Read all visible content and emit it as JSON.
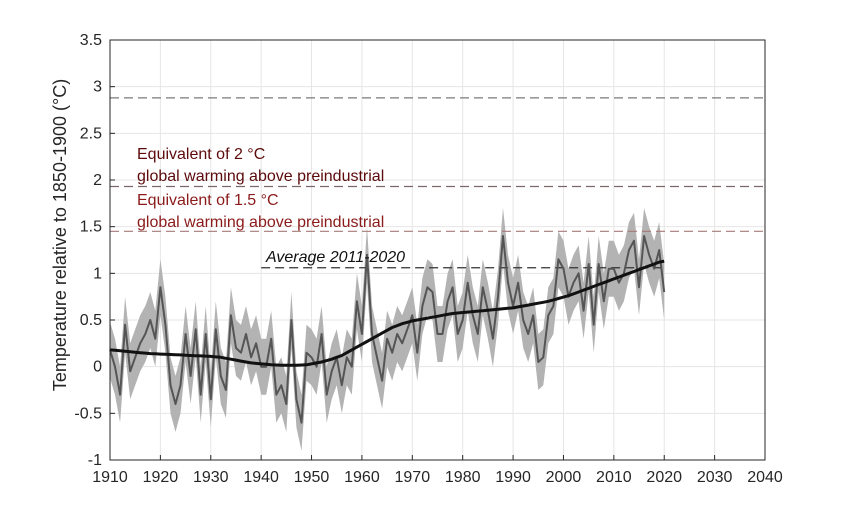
{
  "chart_data": {
    "type": "line",
    "ylabel": "Temperature relative to 1850-1900 (°C)",
    "xlabel": "",
    "xlim": [
      1910,
      2040
    ],
    "ylim": [
      -1,
      3.5
    ],
    "xticks": [
      "1910",
      "1920",
      "1930",
      "1940",
      "1950",
      "1960",
      "1970",
      "1980",
      "1990",
      "2000",
      "2010",
      "2020",
      "2030",
      "2040"
    ],
    "yticks": [
      "-1",
      "-0.5",
      "0",
      "0.5",
      "1",
      "1.5",
      "2",
      "2.5",
      "3",
      "3.5"
    ],
    "grid": true,
    "years": [
      1910,
      1911,
      1912,
      1913,
      1914,
      1915,
      1916,
      1917,
      1918,
      1919,
      1920,
      1921,
      1922,
      1923,
      1924,
      1925,
      1926,
      1927,
      1928,
      1929,
      1930,
      1931,
      1932,
      1933,
      1934,
      1935,
      1936,
      1937,
      1938,
      1939,
      1940,
      1941,
      1942,
      1943,
      1944,
      1945,
      1946,
      1947,
      1948,
      1949,
      1950,
      1951,
      1952,
      1953,
      1954,
      1955,
      1956,
      1957,
      1958,
      1959,
      1960,
      1961,
      1962,
      1963,
      1964,
      1965,
      1966,
      1967,
      1968,
      1969,
      1970,
      1971,
      1972,
      1973,
      1974,
      1975,
      1976,
      1977,
      1978,
      1979,
      1980,
      1981,
      1982,
      1983,
      1984,
      1985,
      1986,
      1987,
      1988,
      1989,
      1990,
      1991,
      1992,
      1993,
      1994,
      1995,
      1996,
      1997,
      1998,
      1999,
      2000,
      2001,
      2002,
      2003,
      2004,
      2005,
      2006,
      2007,
      2008,
      2009,
      2010,
      2011,
      2012,
      2013,
      2014,
      2015,
      2016,
      2017,
      2018,
      2019,
      2020
    ],
    "series": [
      {
        "kind": "annual",
        "color": "#555555",
        "values": [
          0.18,
          0.0,
          -0.3,
          0.45,
          -0.05,
          0.1,
          0.25,
          0.35,
          0.5,
          0.3,
          0.85,
          0.45,
          -0.2,
          -0.4,
          -0.2,
          0.35,
          -0.1,
          0.4,
          -0.3,
          0.35,
          -0.35,
          0.4,
          -0.1,
          -0.25,
          0.55,
          0.2,
          0.15,
          0.35,
          0.1,
          0.25,
          0.0,
          0.0,
          0.3,
          -0.3,
          -0.2,
          -0.4,
          0.5,
          -0.35,
          -0.6,
          0.15,
          0.1,
          0.0,
          0.35,
          -0.3,
          -0.05,
          0.1,
          -0.2,
          0.1,
          0.0,
          0.7,
          0.35,
          1.2,
          0.35,
          0.1,
          -0.15,
          0.3,
          0.15,
          0.35,
          0.25,
          0.4,
          0.55,
          0.15,
          0.65,
          0.85,
          0.8,
          0.35,
          0.35,
          0.7,
          0.85,
          0.35,
          0.5,
          0.9,
          0.55,
          0.35,
          0.85,
          0.6,
          0.3,
          0.75,
          1.4,
          0.9,
          0.65,
          0.9,
          0.5,
          0.35,
          0.55,
          0.05,
          0.1,
          0.55,
          0.65,
          1.15,
          1.05,
          0.75,
          0.9,
          1.0,
          0.6,
          1.1,
          0.45,
          1.1,
          0.7,
          1.05,
          1.05,
          0.9,
          1.0,
          1.25,
          1.35,
          0.85,
          1.4,
          1.2,
          1.05,
          1.25,
          0.8
        ],
        "band": 0.3
      },
      {
        "kind": "trend",
        "color": "#111111",
        "values": [
          0.18,
          0.175,
          0.17,
          0.165,
          0.16,
          0.155,
          0.15,
          0.145,
          0.14,
          0.138,
          0.135,
          0.133,
          0.13,
          0.128,
          0.126,
          0.123,
          0.12,
          0.118,
          0.115,
          0.113,
          0.11,
          0.105,
          0.1,
          0.09,
          0.08,
          0.07,
          0.06,
          0.05,
          0.04,
          0.035,
          0.03,
          0.025,
          0.02,
          0.018,
          0.016,
          0.015,
          0.015,
          0.016,
          0.018,
          0.02,
          0.03,
          0.04,
          0.05,
          0.065,
          0.08,
          0.1,
          0.12,
          0.15,
          0.18,
          0.21,
          0.24,
          0.27,
          0.3,
          0.33,
          0.36,
          0.39,
          0.42,
          0.44,
          0.46,
          0.475,
          0.49,
          0.5,
          0.51,
          0.52,
          0.53,
          0.54,
          0.55,
          0.56,
          0.57,
          0.575,
          0.58,
          0.585,
          0.59,
          0.595,
          0.6,
          0.605,
          0.61,
          0.615,
          0.62,
          0.625,
          0.63,
          0.64,
          0.65,
          0.66,
          0.67,
          0.68,
          0.69,
          0.7,
          0.715,
          0.73,
          0.745,
          0.76,
          0.78,
          0.8,
          0.82,
          0.84,
          0.86,
          0.88,
          0.9,
          0.92,
          0.94,
          0.96,
          0.98,
          1.0,
          1.02,
          1.04,
          1.06,
          1.08,
          1.1,
          1.12,
          1.13
        ]
      }
    ],
    "reference_lines": [
      {
        "y": 2.88,
        "color": "#7a7a7a"
      },
      {
        "y": 1.93,
        "color": "#7a6868"
      },
      {
        "y": 1.45,
        "color": "#a67a7a"
      },
      {
        "y": 1.06,
        "color": "#333333",
        "x_range": [
          1940,
          2020
        ]
      }
    ],
    "annotations": [
      {
        "line1": "Equivalent of 2 °C",
        "line2": "global warming above preindustrial",
        "color": "#5c0a0a"
      },
      {
        "line1": "Equivalent of 1.5 °C",
        "line2": "global warming above preindustrial",
        "color": "#8b1a1a"
      },
      {
        "line1": "Average 2011-2020",
        "italic": true,
        "color": "#111111"
      }
    ]
  }
}
